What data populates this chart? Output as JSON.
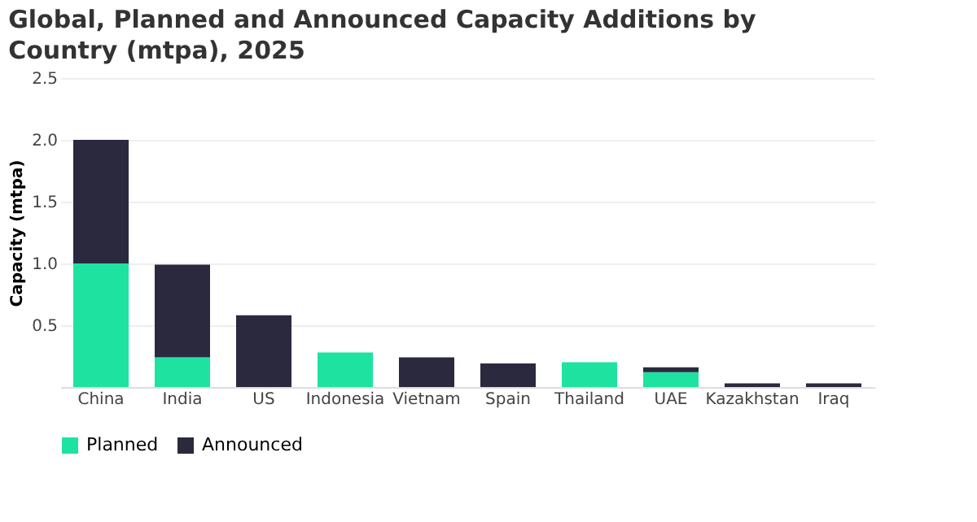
{
  "chart_data": {
    "type": "bar",
    "title": "Global, Planned and Announced Capacity Additions by Country (mtpa), 2025",
    "ylabel": "Capacity (mtpa)",
    "categories": [
      "China",
      "India",
      "US",
      "Indonesia",
      "Vietnam",
      "Spain",
      "Thailand",
      "UAE",
      "Kazakhstan",
      "Iraq"
    ],
    "stacked": true,
    "series": [
      {
        "name": "Planned",
        "color": "#1ee3a0",
        "values": [
          1.0,
          0.24,
          0,
          0.28,
          0,
          0,
          0.2,
          0.12,
          0,
          0
        ]
      },
      {
        "name": "Announced",
        "color": "#2a293d",
        "values": [
          1.0,
          0.75,
          0.58,
          0,
          0.24,
          0.19,
          0,
          0.04,
          0.03,
          0.03
        ]
      }
    ],
    "ylim": [
      0,
      2.5
    ],
    "yticks": [
      {
        "value": 0.5,
        "label": "0.5"
      },
      {
        "value": 1,
        "label": "1.0"
      },
      {
        "value": 1.5,
        "label": "1.5"
      },
      {
        "value": 2,
        "label": "2.0"
      },
      {
        "value": 2.5,
        "label": "2.5"
      }
    ],
    "grid": "y",
    "legend": "bottom"
  }
}
